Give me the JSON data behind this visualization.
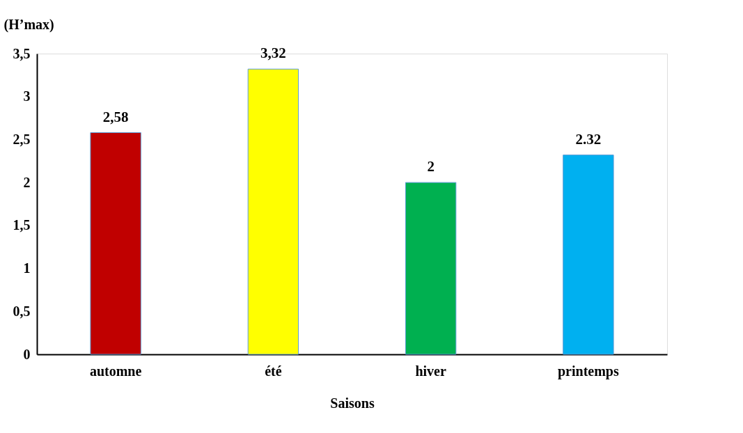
{
  "chart_data": {
    "type": "bar",
    "ylabel": "(H’max)",
    "xlabel": "Saisons",
    "categories": [
      "automne",
      "été",
      "hiver",
      "printemps"
    ],
    "values": [
      2.58,
      3.32,
      2,
      2.32
    ],
    "colors": [
      "#c00000",
      "#ffff00",
      "#00b050",
      "#00b0f0"
    ],
    "value_labels": [
      "2,58",
      "3,32",
      "2",
      "2.32"
    ],
    "ylim": [
      0,
      3.5
    ],
    "yticks": [
      0,
      {
        "value": 0.5,
        "label": "0,5"
      },
      1,
      {
        "value": 1.5,
        "label": "1,5"
      },
      2,
      {
        "value": 2.5,
        "label": "2,5"
      },
      3,
      {
        "value": 3.5,
        "label": "3,5"
      }
    ],
    "grid": false,
    "legend": false
  }
}
